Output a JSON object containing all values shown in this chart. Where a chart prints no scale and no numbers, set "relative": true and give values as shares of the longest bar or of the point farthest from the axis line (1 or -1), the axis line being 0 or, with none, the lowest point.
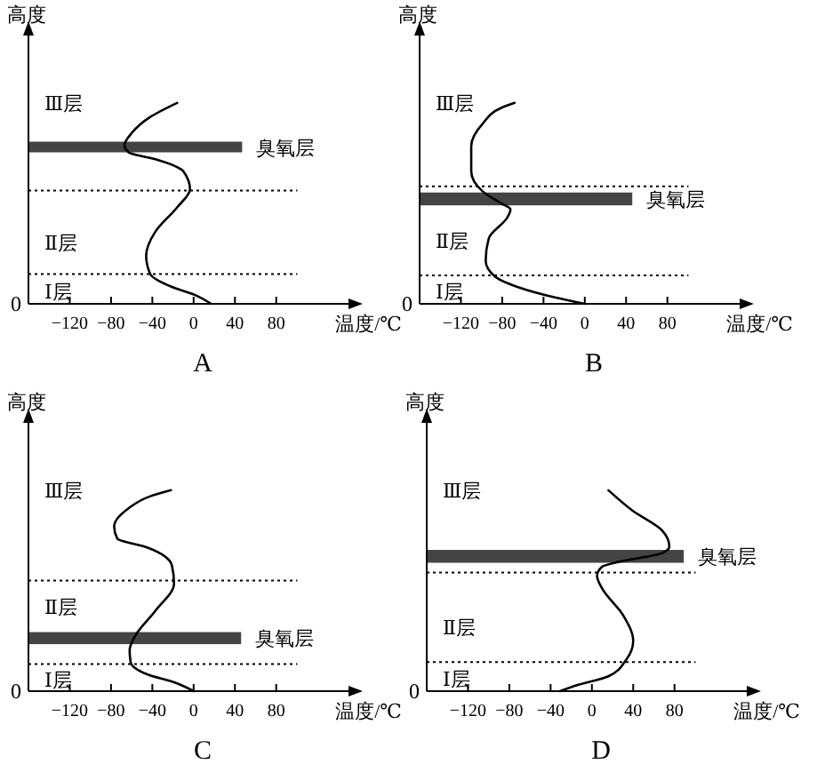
{
  "chart_data": [
    {
      "type": "line",
      "title": "A",
      "xlabel": "温度/℃",
      "ylabel": "高度",
      "relative": true,
      "xlim": [
        -160,
        150
      ],
      "xticks": [
        -120,
        -80,
        -40,
        0,
        40,
        80
      ],
      "x": [
        17,
        1,
        -22,
        -42,
        -46,
        -37,
        -16,
        -3.5,
        -10,
        -37,
        -63,
        -67,
        -60,
        -42,
        -16
      ],
      "values": [
        0,
        0.045,
        0.086,
        0.148,
        0.24,
        0.36,
        0.48,
        0.57,
        0.66,
        0.72,
        0.754,
        0.79,
        0.85,
        0.93,
        1
      ],
      "color": "#000000",
      "line_style": "solid",
      "ref_lines": [
        {
          "axis": "y",
          "value": 0.564,
          "line_style": "dotted"
        },
        {
          "axis": "y",
          "value": 0.148,
          "line_style": "dotted"
        }
      ],
      "bands": [
        {
          "axis": "y",
          "from": 0.754,
          "to": 0.807,
          "color": "#444444"
        }
      ],
      "annotations": [
        {
          "text": "臭氧层",
          "x": 47,
          "y": 0.78
        },
        "Ⅲ层",
        "Ⅱ层",
        "Ⅰ层",
        "0"
      ]
    },
    {
      "type": "line",
      "title": "B",
      "xlabel": "温度/℃",
      "ylabel": "高度",
      "relative": true,
      "xlim": [
        -160,
        150
      ],
      "xticks": [
        -120,
        -80,
        -40,
        0,
        40,
        80
      ],
      "x": [
        0,
        -29,
        -64,
        -87,
        -96,
        -93,
        -75,
        -72,
        -81,
        -99,
        -110,
        -110,
        -99,
        -81,
        -68
      ],
      "values": [
        0,
        0.032,
        0.082,
        0.136,
        0.215,
        0.326,
        0.43,
        0.47,
        0.5,
        0.56,
        0.66,
        0.785,
        0.896,
        0.975,
        1
      ],
      "color": "#000000",
      "line_style": "solid",
      "ref_lines": [
        {
          "axis": "y",
          "value": 0.585,
          "line_style": "dotted"
        },
        {
          "axis": "y",
          "value": 0.142,
          "line_style": "dotted"
        }
      ],
      "bands": [
        {
          "axis": "y",
          "from": 0.49,
          "to": 0.554,
          "color": "#444444"
        }
      ],
      "annotations": [
        {
          "text": "臭氧层",
          "x": 46,
          "y": 0.52
        },
        "Ⅲ层",
        "Ⅱ层",
        "Ⅰ层",
        "0"
      ]
    },
    {
      "type": "line",
      "title": "C",
      "xlabel": "温度/℃",
      "ylabel": "高度",
      "relative": true,
      "xlim": [
        -160,
        150
      ],
      "xticks": [
        -120,
        -80,
        -40,
        0,
        40,
        80
      ],
      "x": [
        0,
        -16,
        -45,
        -61,
        -62,
        -56,
        -37,
        -19,
        -21,
        -45,
        -74,
        -77,
        -63,
        -42,
        -22
      ],
      "values": [
        0,
        0.039,
        0.084,
        0.144,
        0.204,
        0.28,
        0.4,
        0.535,
        0.625,
        0.715,
        0.76,
        0.82,
        0.91,
        0.97,
        1
      ],
      "color": "#000000",
      "line_style": "solid",
      "ref_lines": [
        {
          "axis": "y",
          "value": 0.55,
          "line_style": "dotted"
        },
        {
          "axis": "y",
          "value": 0.135,
          "line_style": "dotted"
        }
      ],
      "bands": [
        {
          "axis": "y",
          "from": 0.234,
          "to": 0.294,
          "color": "#444444"
        }
      ],
      "annotations": [
        {
          "text": "臭氧层",
          "x": 46,
          "y": 0.264
        },
        "Ⅲ层",
        "Ⅱ层",
        "Ⅰ层",
        "0"
      ]
    },
    {
      "type": "line",
      "title": "D",
      "xlabel": "温度/℃",
      "ylabel": "高度",
      "relative": true,
      "xlim": [
        -160,
        150
      ],
      "xticks": [
        -120,
        -80,
        -40,
        0,
        40,
        80
      ],
      "x": [
        -31,
        -13,
        16,
        33,
        40,
        30,
        10,
        5,
        10,
        27,
        68,
        75,
        68,
        39,
        16
      ],
      "values": [
        0,
        0.032,
        0.074,
        0.155,
        0.25,
        0.38,
        0.51,
        0.574,
        0.62,
        0.645,
        0.687,
        0.72,
        0.8,
        0.9,
        1
      ],
      "color": "#000000",
      "line_style": "solid",
      "ref_lines": [
        {
          "axis": "y",
          "value": 0.59,
          "line_style": "dotted"
        },
        {
          "axis": "y",
          "value": 0.145,
          "line_style": "dotted"
        }
      ],
      "bands": [
        {
          "axis": "y",
          "from": 0.639,
          "to": 0.703,
          "color": "#444444"
        }
      ],
      "annotations": [
        {
          "text": "臭氧层",
          "x": 89,
          "y": 0.67
        },
        "Ⅲ层",
        "Ⅱ层",
        "Ⅰ层",
        "0"
      ]
    }
  ]
}
